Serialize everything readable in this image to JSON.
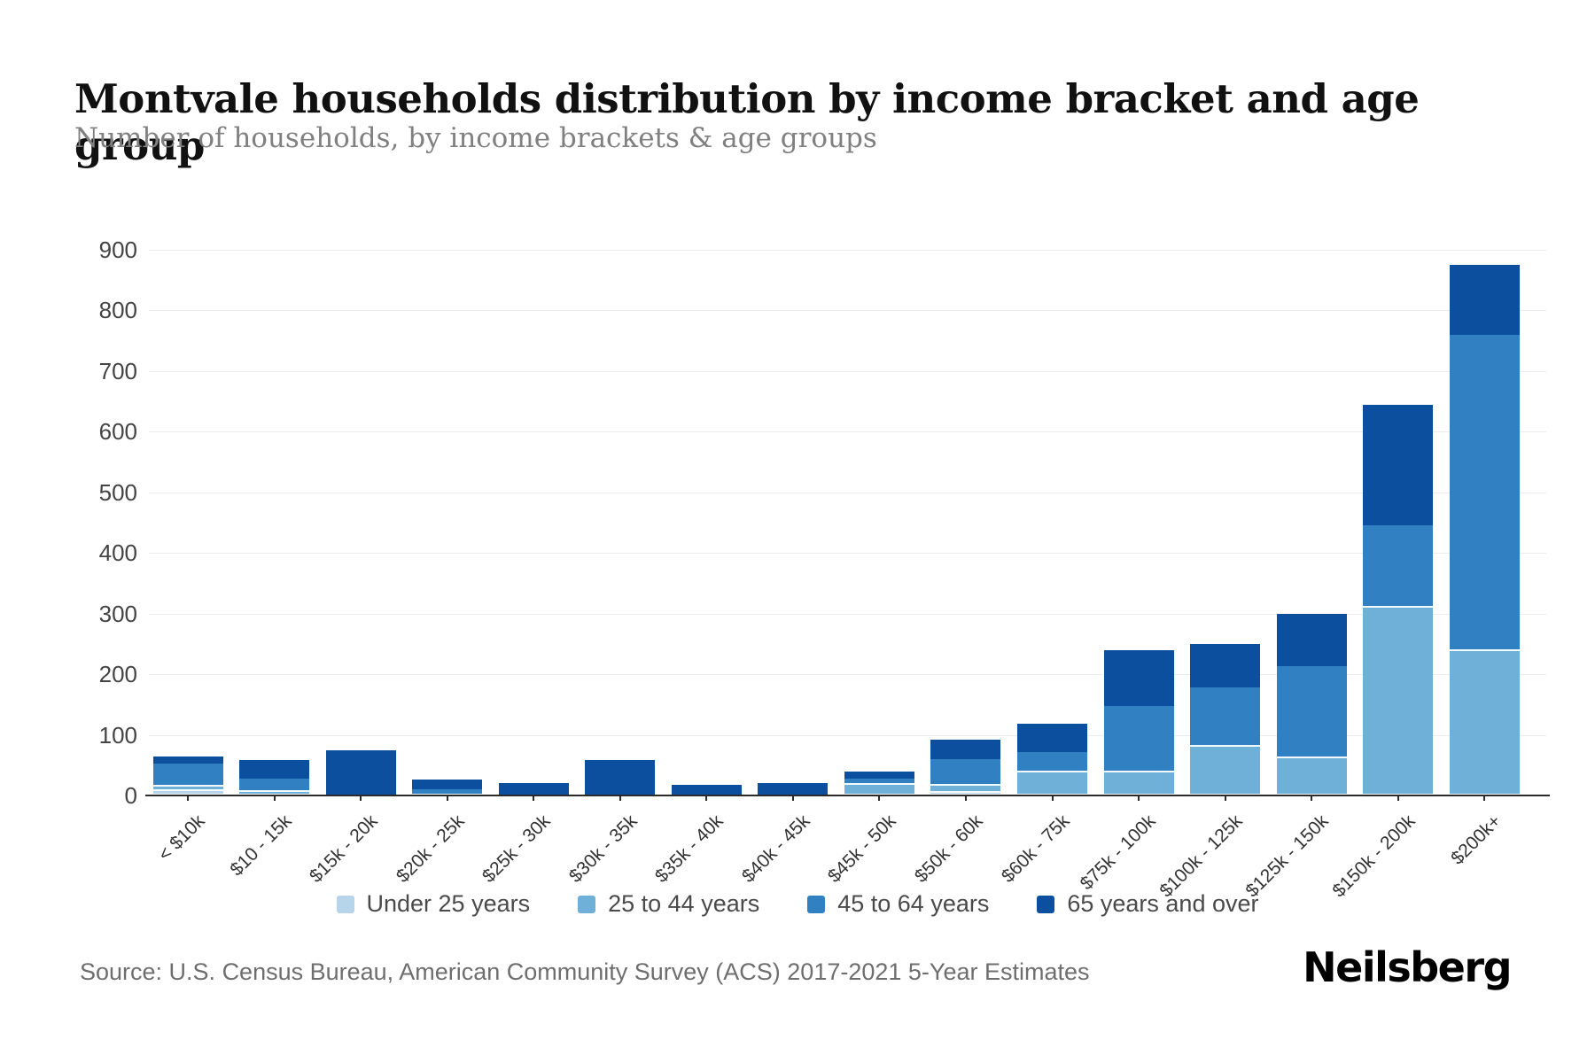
{
  "header": {
    "title": "Montvale households distribution by income bracket and age group",
    "subtitle": "Number of households, by income brackets & age groups"
  },
  "chart_data": {
    "type": "bar",
    "stacked": true,
    "title": "Montvale households distribution by income bracket and age group",
    "xlabel": "",
    "ylabel": "",
    "ylim": [
      0,
      900
    ],
    "ytick_step": 100,
    "grid": true,
    "legend_position": "bottom",
    "categories": [
      "< $10k",
      "$10 - 15k",
      "$15k - 20k",
      "$20k - 25k",
      "$25k - 30k",
      "$30k - 35k",
      "$35k - 40k",
      "$40k - 45k",
      "$45k - 50k",
      "$50k - 60k",
      "$60k - 75k",
      "$75k - 100k",
      "$100k - 125k",
      "$125k - 150k",
      "$150k - 200k",
      "$200k+"
    ],
    "series": [
      {
        "name": "Under 25 years",
        "color": "#b6d5ea",
        "values": [
          7,
          0,
          0,
          0,
          0,
          0,
          0,
          0,
          0,
          5,
          0,
          0,
          0,
          0,
          0,
          0
        ]
      },
      {
        "name": "25 to 44 years",
        "color": "#6fb0d9",
        "values": [
          7,
          6,
          0,
          0,
          0,
          0,
          0,
          0,
          18,
          11,
          38,
          38,
          80,
          62,
          310,
          238
        ]
      },
      {
        "name": "45 to 64 years",
        "color": "#3181c2",
        "values": [
          38,
          22,
          0,
          10,
          0,
          0,
          0,
          0,
          10,
          44,
          34,
          109,
          98,
          152,
          135,
          522
        ]
      },
      {
        "name": "65 years and over",
        "color": "#0b4f9e",
        "values": [
          12,
          30,
          75,
          16,
          21,
          58,
          18,
          20,
          12,
          32,
          46,
          93,
          72,
          86,
          200,
          115
        ]
      }
    ]
  },
  "footer": {
    "source": "Source: U.S. Census Bureau, American Community Survey (ACS) 2017-2021 5-Year Estimates",
    "brand": "Neilsberg"
  }
}
